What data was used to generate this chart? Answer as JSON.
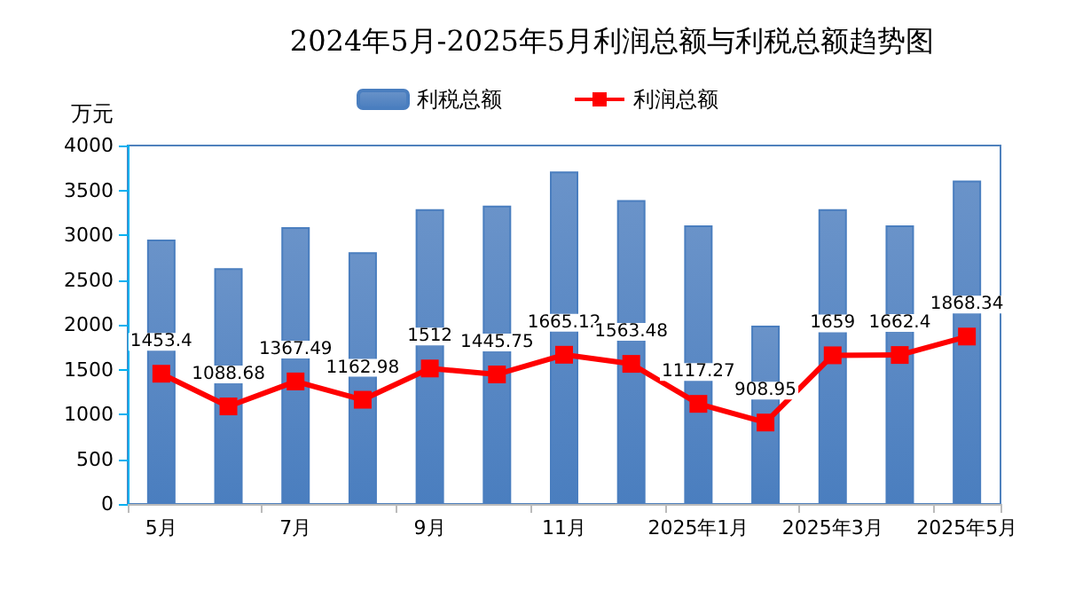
{
  "chart_data": {
    "type": "bar",
    "title": "2024年5月-2025年5月利润总额与利税总额趋势图",
    "ylabel": "万元",
    "categories": [
      "5月",
      null,
      "7月",
      null,
      "9月",
      null,
      "11月",
      null,
      "2025年1月",
      null,
      "2025年3月",
      null,
      "2025年5月"
    ],
    "series": [
      {
        "name": "利税总额",
        "color": "#4a7ebf",
        "values": [
          2950,
          2630,
          3090,
          2810,
          3290,
          3330,
          3710,
          3390,
          3110,
          1990,
          3290,
          3110,
          3610
        ]
      },
      {
        "name": "利润总额",
        "type": "line",
        "color": "#ff0000",
        "marker": "square",
        "values": [
          1453.4,
          1088.68,
          1367.49,
          1162.98,
          1512,
          1445.75,
          1665.12,
          1563.48,
          1117.27,
          908.95,
          1659,
          1662.4,
          1868.34
        ],
        "value_labels": [
          "1453.4",
          "1088.68",
          "1367.49",
          "1162.98",
          "1512",
          "1445.75",
          "1665.12",
          "1563.48",
          "1117.27",
          "908.95",
          "1659",
          "1662.4",
          "1868.34"
        ]
      }
    ],
    "ylim": [
      0,
      4000
    ],
    "yticks": [
      0,
      500,
      1000,
      1500,
      2000,
      2500,
      3000,
      3500,
      4000
    ],
    "grid": false,
    "legend": "top"
  }
}
